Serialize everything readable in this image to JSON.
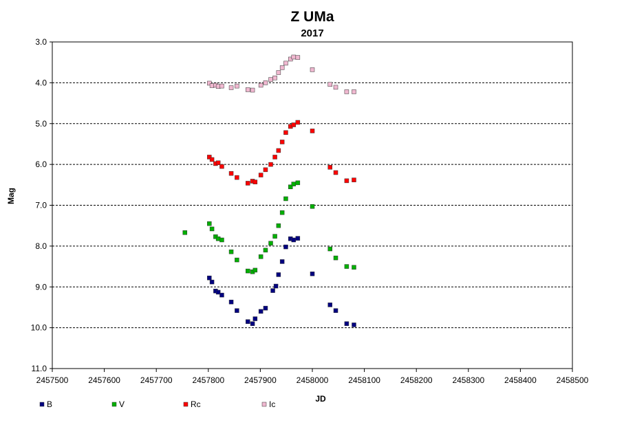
{
  "chart_data": {
    "type": "scatter",
    "title": "Z UMa",
    "subtitle": "2017",
    "xlabel": "JD",
    "ylabel": "Mag",
    "xlim": [
      2457500,
      2458500
    ],
    "ylim": [
      3.0,
      11.0
    ],
    "y_inverted": true,
    "x_ticks": [
      "2457500",
      "2457600",
      "2457700",
      "2457800",
      "2457900",
      "2458000",
      "2458100",
      "2458200",
      "2458300",
      "2458400",
      "2458500"
    ],
    "y_ticks": [
      "3.0",
      "4.0",
      "5.0",
      "6.0",
      "7.0",
      "8.0",
      "9.0",
      "10.0",
      "11.0"
    ],
    "grid": "horizontal dashed",
    "legend_position": "bottom",
    "series": [
      {
        "name": "B",
        "color": "#000080",
        "points": [
          [
            2457802,
            8.78
          ],
          [
            2457807,
            8.88
          ],
          [
            2457814,
            9.1
          ],
          [
            2457819,
            9.13
          ],
          [
            2457826,
            9.2
          ],
          [
            2457844,
            9.37
          ],
          [
            2457855,
            9.58
          ],
          [
            2457876,
            9.85
          ],
          [
            2457885,
            9.9
          ],
          [
            2457890,
            9.78
          ],
          [
            2457901,
            9.6
          ],
          [
            2457910,
            9.52
          ],
          [
            2457924,
            9.09
          ],
          [
            2457930,
            8.98
          ],
          [
            2457935,
            8.7
          ],
          [
            2457942,
            8.38
          ],
          [
            2457949,
            8.02
          ],
          [
            2457958,
            7.82
          ],
          [
            2457964,
            7.85
          ],
          [
            2457972,
            7.81
          ],
          [
            2458000,
            8.68
          ],
          [
            2458034,
            9.44
          ],
          [
            2458045,
            9.58
          ],
          [
            2458066,
            9.9
          ],
          [
            2458080,
            9.93
          ]
        ]
      },
      {
        "name": "V",
        "color": "#00b000",
        "points": [
          [
            2457755,
            7.67
          ],
          [
            2457802,
            7.45
          ],
          [
            2457807,
            7.58
          ],
          [
            2457814,
            7.77
          ],
          [
            2457819,
            7.82
          ],
          [
            2457826,
            7.85
          ],
          [
            2457844,
            8.14
          ],
          [
            2457855,
            8.34
          ],
          [
            2457876,
            8.61
          ],
          [
            2457885,
            8.63
          ],
          [
            2457890,
            8.59
          ],
          [
            2457901,
            8.26
          ],
          [
            2457910,
            8.1
          ],
          [
            2457920,
            7.93
          ],
          [
            2457928,
            7.76
          ],
          [
            2457935,
            7.5
          ],
          [
            2457942,
            7.18
          ],
          [
            2457949,
            6.84
          ],
          [
            2457958,
            6.55
          ],
          [
            2457964,
            6.48
          ],
          [
            2457972,
            6.45
          ],
          [
            2458000,
            7.03
          ],
          [
            2458034,
            8.07
          ],
          [
            2458045,
            8.29
          ],
          [
            2458066,
            8.5
          ],
          [
            2458080,
            8.52
          ]
        ]
      },
      {
        "name": "Rc",
        "color": "#ff0000",
        "points": [
          [
            2457802,
            5.82
          ],
          [
            2457807,
            5.88
          ],
          [
            2457814,
            5.98
          ],
          [
            2457819,
            5.96
          ],
          [
            2457826,
            6.05
          ],
          [
            2457844,
            6.22
          ],
          [
            2457855,
            6.32
          ],
          [
            2457876,
            6.46
          ],
          [
            2457885,
            6.41
          ],
          [
            2457890,
            6.43
          ],
          [
            2457901,
            6.26
          ],
          [
            2457910,
            6.13
          ],
          [
            2457920,
            6.0
          ],
          [
            2457928,
            5.82
          ],
          [
            2457935,
            5.66
          ],
          [
            2457942,
            5.45
          ],
          [
            2457949,
            5.22
          ],
          [
            2457958,
            5.07
          ],
          [
            2457964,
            5.03
          ],
          [
            2457972,
            4.97
          ],
          [
            2458000,
            5.18
          ],
          [
            2458034,
            6.07
          ],
          [
            2458045,
            6.2
          ],
          [
            2458066,
            6.4
          ],
          [
            2458080,
            6.38
          ]
        ]
      },
      {
        "name": "Ic",
        "color": "#f0b8d0",
        "points": [
          [
            2457802,
            4.01
          ],
          [
            2457807,
            4.07
          ],
          [
            2457814,
            4.06
          ],
          [
            2457819,
            4.09
          ],
          [
            2457826,
            4.08
          ],
          [
            2457844,
            4.12
          ],
          [
            2457855,
            4.08
          ],
          [
            2457876,
            4.17
          ],
          [
            2457885,
            4.18
          ],
          [
            2457901,
            4.06
          ],
          [
            2457910,
            4.0
          ],
          [
            2457920,
            3.92
          ],
          [
            2457928,
            3.88
          ],
          [
            2457935,
            3.75
          ],
          [
            2457942,
            3.63
          ],
          [
            2457949,
            3.52
          ],
          [
            2457958,
            3.42
          ],
          [
            2457964,
            3.37
          ],
          [
            2457972,
            3.38
          ],
          [
            2458000,
            3.68
          ],
          [
            2458034,
            4.04
          ],
          [
            2458045,
            4.11
          ],
          [
            2458066,
            4.22
          ],
          [
            2458080,
            4.22
          ]
        ]
      }
    ]
  }
}
